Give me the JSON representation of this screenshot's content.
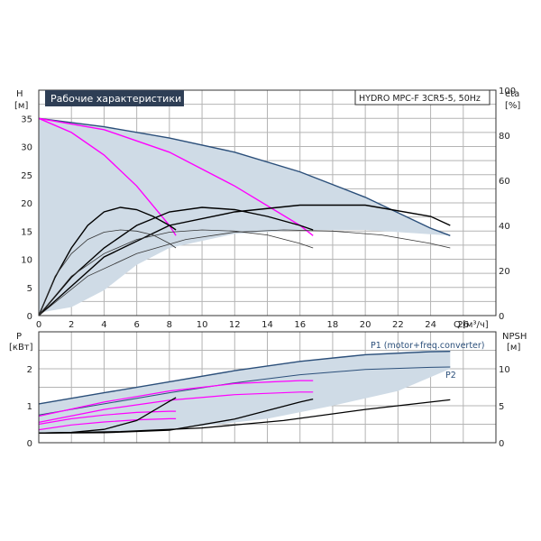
{
  "chart_data": [
    {
      "type": "line",
      "title": "Рабочие характеристики",
      "info_box": "HYDRO MPC-F 3CR5-5, 50Hz",
      "x_unit": "Q [м³/ч]",
      "x_label": "Q",
      "x_unit_suffix": "[м³/ч]",
      "y_left_label": "H",
      "y_left_unit": "[м]",
      "y_right_label": "eta",
      "y_right_unit": "[%]",
      "xlim": [
        0,
        28
      ],
      "ylim": [
        0,
        40
      ],
      "y_right_range": [
        0,
        100
      ],
      "grid": true,
      "x_ticks": [
        0,
        2,
        4,
        6,
        8,
        10,
        12,
        14,
        16,
        18,
        20,
        22,
        24,
        26
      ],
      "y_left_ticks": [
        0,
        5,
        10,
        15,
        20,
        25,
        30,
        35
      ],
      "y_right_ticks": [
        0,
        20,
        40,
        60,
        80,
        100
      ],
      "colors": {
        "area": "#cfdbe6",
        "area_edge": "#2b4f7a",
        "head_curve": "#ff00ff",
        "eta_curve": "#000000",
        "thin_curve": "#333333"
      },
      "area": {
        "upper": {
          "x": [
            0,
            4,
            8,
            12,
            16,
            20,
            24,
            25.2
          ],
          "y": [
            35,
            33.5,
            31.5,
            29,
            25.5,
            21,
            15.5,
            14.2
          ]
        },
        "lower": {
          "x": [
            25.2,
            20,
            16,
            12,
            8,
            6,
            4,
            2,
            0
          ],
          "y": [
            14.2,
            15.2,
            15.2,
            14.5,
            12,
            9,
            4.5,
            1.5,
            0.5
          ]
        }
      },
      "series": [
        {
          "kind": "head",
          "x": [
            0,
            2,
            4,
            6,
            8,
            8.4
          ],
          "y": [
            35,
            32.5,
            28.5,
            23,
            16,
            14.2
          ]
        },
        {
          "kind": "head",
          "x": [
            0,
            4,
            8,
            12,
            16,
            16.8
          ],
          "y": [
            35,
            33,
            29,
            23,
            16,
            14.2
          ]
        },
        {
          "kind": "eta",
          "x": [
            0,
            1,
            2,
            3,
            4,
            5,
            6,
            7,
            8,
            8.4
          ],
          "y": [
            0,
            17,
            30,
            40,
            46,
            48,
            47,
            44,
            40,
            38
          ]
        },
        {
          "kind": "eta",
          "x": [
            0,
            2,
            4,
            6,
            8,
            10,
            12,
            14,
            16,
            16.8
          ],
          "y": [
            0,
            17,
            30,
            40,
            46,
            48,
            47,
            44,
            40,
            38
          ]
        },
        {
          "kind": "eta",
          "x": [
            0,
            4,
            8,
            12,
            16,
            20,
            24,
            25.2
          ],
          "y": [
            0,
            26,
            40,
            46,
            49,
            49,
            44,
            40
          ]
        },
        {
          "kind": "thin",
          "x": [
            0,
            1,
            2,
            3,
            4,
            5,
            6,
            7,
            8,
            8.4
          ],
          "y": [
            0,
            7,
            11,
            13.5,
            14.8,
            15.2,
            15,
            14.3,
            12.8,
            12
          ]
        },
        {
          "kind": "thin",
          "x": [
            0,
            2,
            4,
            6,
            8,
            10,
            12,
            14,
            16,
            16.8
          ],
          "y": [
            0,
            7,
            11,
            13.5,
            14.8,
            15.2,
            15,
            14.3,
            12.8,
            12
          ]
        },
        {
          "kind": "thin",
          "x": [
            0,
            3,
            6,
            9,
            12,
            15,
            18,
            21,
            24,
            25.2
          ],
          "y": [
            0,
            7,
            11,
            13.5,
            14.8,
            15.2,
            15,
            14.3,
            12.8,
            12
          ]
        }
      ]
    },
    {
      "type": "line",
      "y_left_label": "P",
      "y_left_unit": "[кВт]",
      "y_right_label": "NPSH",
      "y_right_unit": "[м]",
      "xlim": [
        0,
        28
      ],
      "ylim": [
        0,
        3
      ],
      "y_right_range": [
        0,
        15
      ],
      "grid": true,
      "y_left_ticks": [
        0,
        1,
        2
      ],
      "y_right_ticks": [
        0,
        5,
        10
      ],
      "colors": {
        "area": "#cfdbe6",
        "p1": "#2b4f7a",
        "p2": "#2b4f7a",
        "power": "#ff00ff",
        "npsh": "#000000"
      },
      "legend_labels": [
        "P1 (motor+freq.converter)",
        "P2"
      ],
      "area": {
        "upper": {
          "x": [
            0,
            4,
            8,
            12,
            16,
            20,
            24,
            25.2
          ],
          "y": [
            1.05,
            1.35,
            1.65,
            1.95,
            2.2,
            2.4,
            2.5,
            2.5
          ]
        },
        "lower": {
          "x": [
            25.2,
            22,
            18,
            14,
            10,
            6,
            2,
            0
          ],
          "y": [
            2.0,
            1.4,
            1.0,
            0.65,
            0.45,
            0.3,
            0.25,
            0.25
          ]
        }
      },
      "series": [
        {
          "kind": "p1",
          "x": [
            0,
            4,
            8,
            12,
            16,
            20,
            24,
            25.2
          ],
          "y": [
            1.05,
            1.35,
            1.65,
            1.95,
            2.2,
            2.38,
            2.46,
            2.47
          ]
        },
        {
          "kind": "p2",
          "x": [
            0,
            4,
            8,
            12,
            16,
            20,
            24,
            25.2
          ],
          "y": [
            0.75,
            1.05,
            1.35,
            1.62,
            1.84,
            1.98,
            2.04,
            2.05
          ]
        },
        {
          "kind": "power",
          "x": [
            0,
            4,
            8,
            12,
            16,
            16.8
          ],
          "y": [
            0.72,
            1.1,
            1.4,
            1.6,
            1.68,
            1.68
          ]
        },
        {
          "kind": "power",
          "x": [
            0,
            4,
            8,
            12,
            16,
            16.8
          ],
          "y": [
            0.55,
            0.9,
            1.15,
            1.3,
            1.37,
            1.37
          ]
        },
        {
          "kind": "power",
          "x": [
            0,
            2,
            4,
            6,
            8,
            8.4
          ],
          "y": [
            0.5,
            0.65,
            0.75,
            0.82,
            0.85,
            0.85
          ]
        },
        {
          "kind": "power",
          "x": [
            0,
            2,
            4,
            6,
            8,
            8.4
          ],
          "y": [
            0.35,
            0.48,
            0.56,
            0.62,
            0.65,
            0.65
          ]
        },
        {
          "kind": "npsh",
          "x": [
            0,
            2,
            4,
            6,
            8,
            8.4
          ],
          "y": [
            1.3,
            1.4,
            1.8,
            3.0,
            5.6,
            6.1
          ]
        },
        {
          "kind": "npsh",
          "x": [
            0,
            4,
            8,
            12,
            16,
            16.8
          ],
          "y": [
            1.3,
            1.35,
            1.7,
            3.2,
            5.5,
            5.9
          ]
        },
        {
          "kind": "npsh",
          "x": [
            0,
            5,
            10,
            15,
            20,
            25.2
          ],
          "y": [
            1.3,
            1.5,
            2.0,
            3.0,
            4.5,
            5.8
          ]
        }
      ]
    }
  ]
}
